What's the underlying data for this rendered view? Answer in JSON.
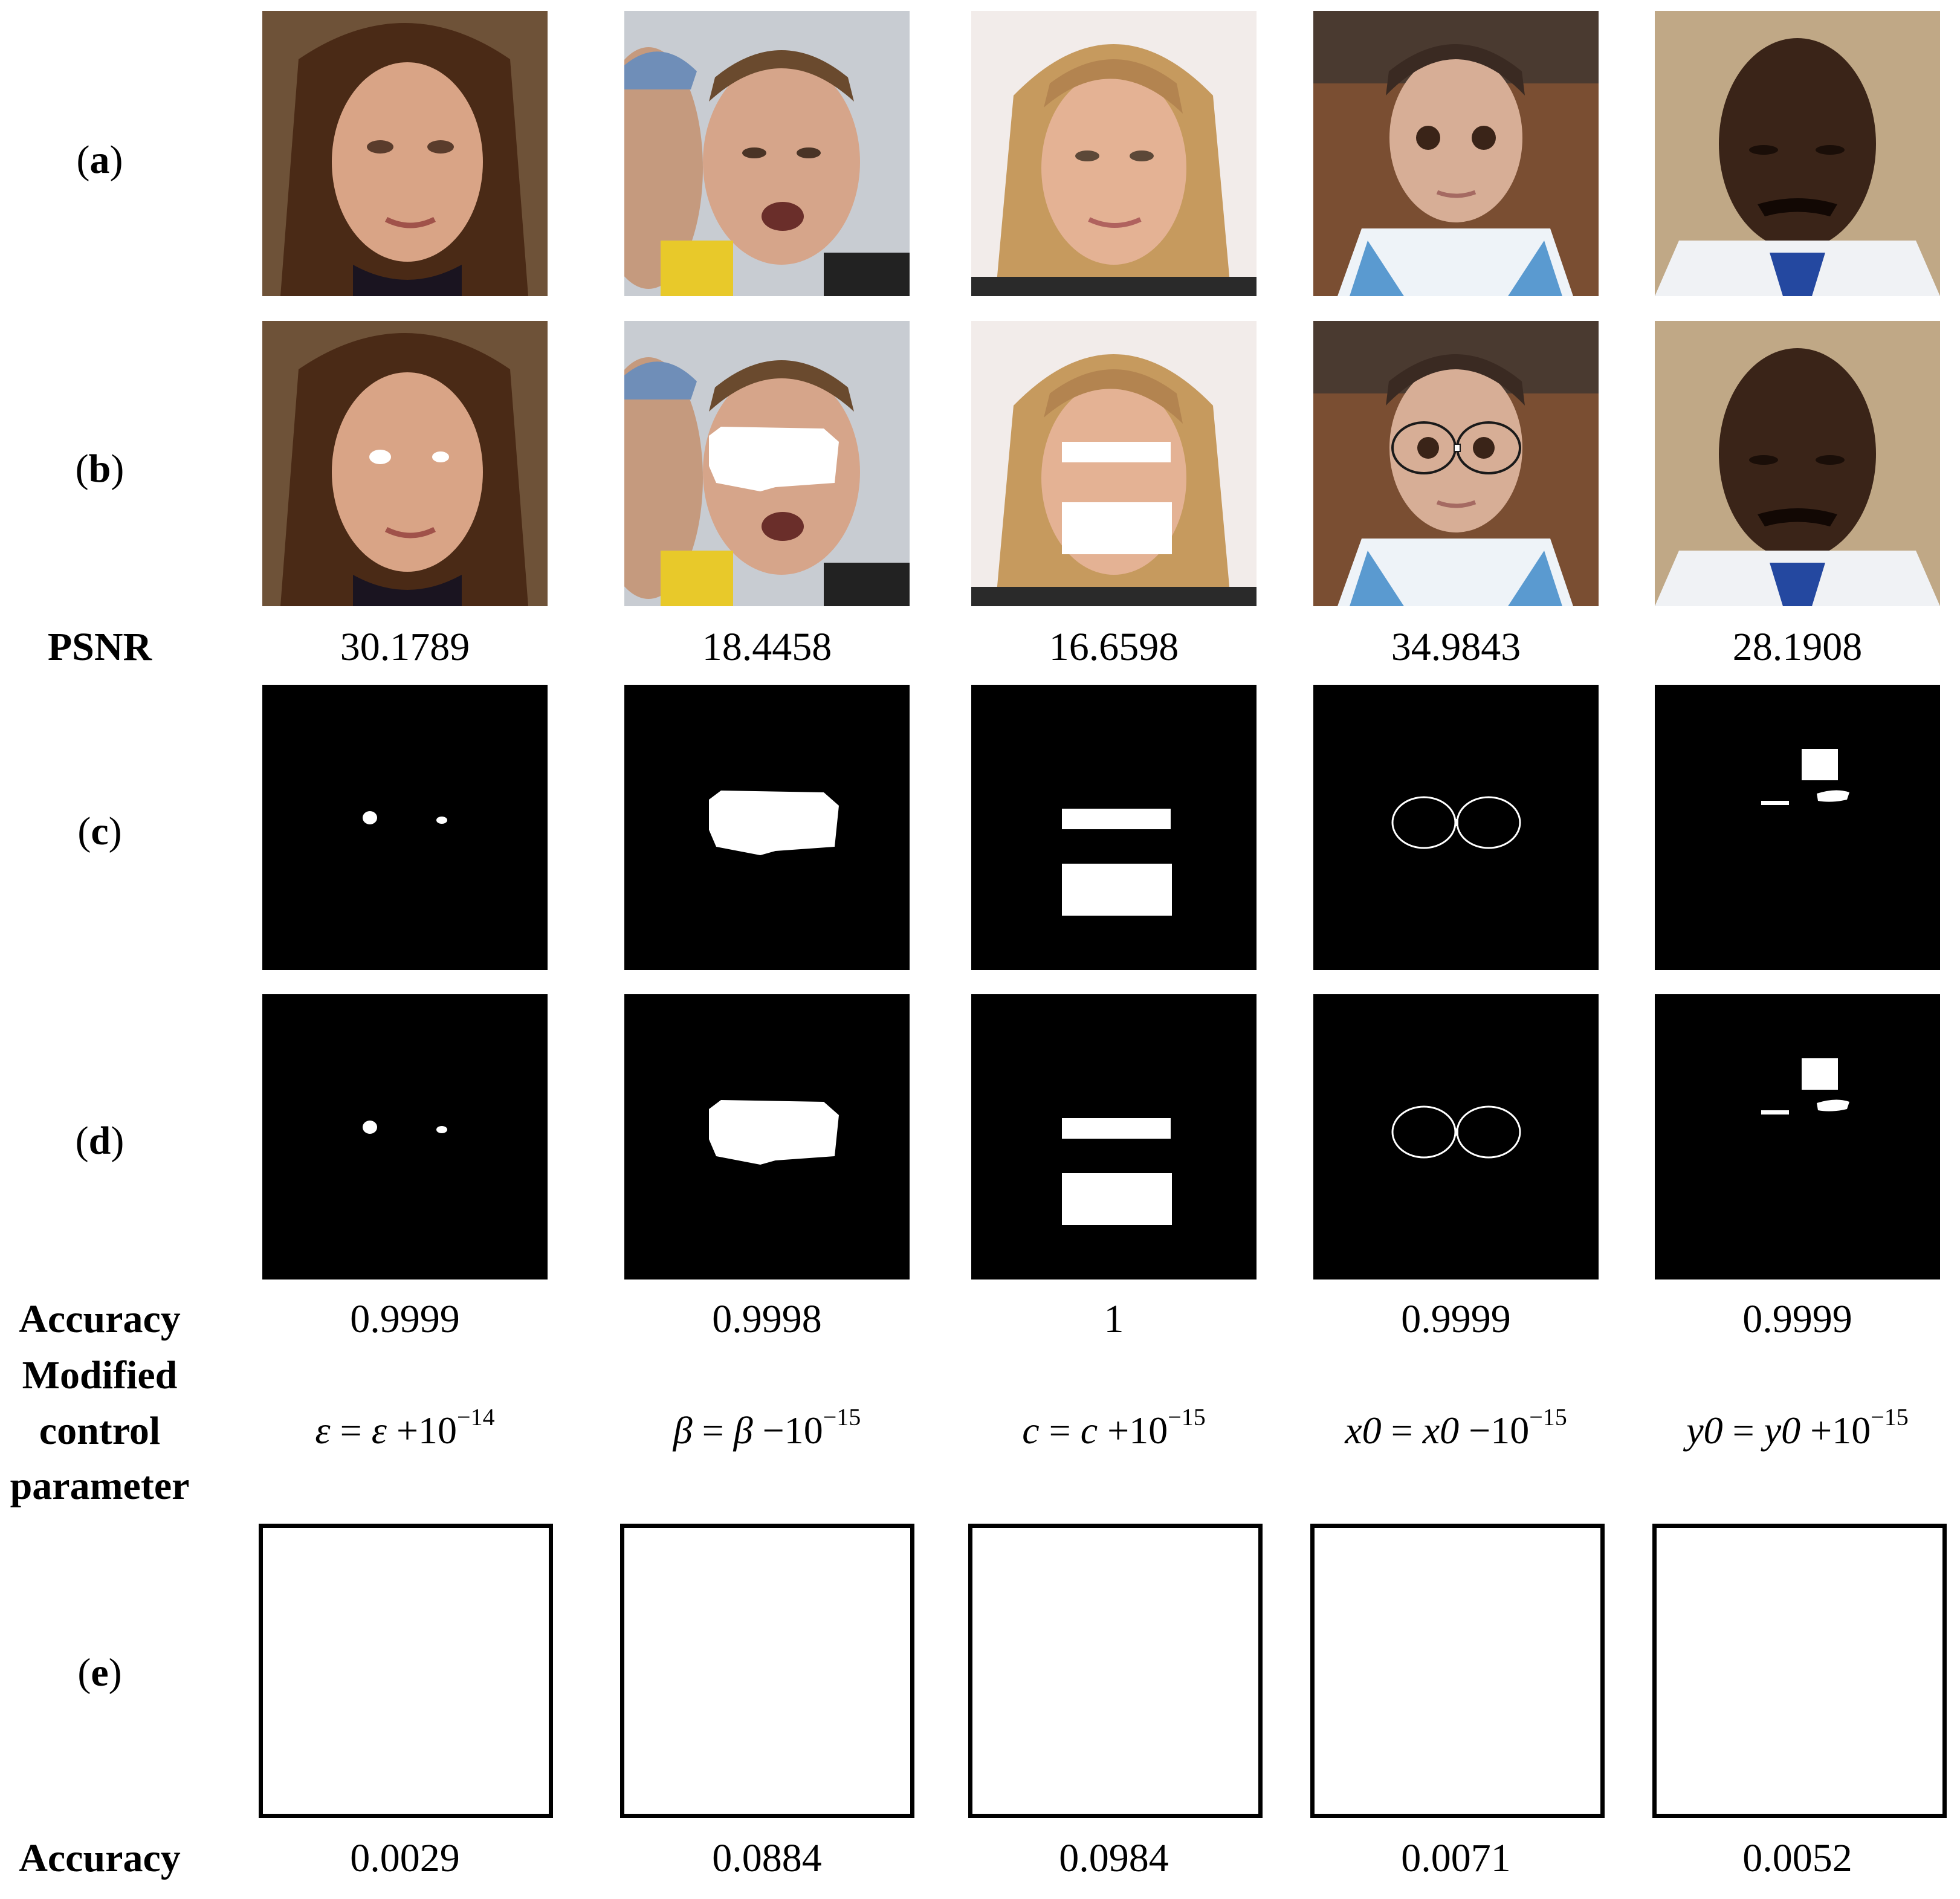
{
  "row_labels": {
    "a": "(a)",
    "b": "(b)",
    "psnr": "PSNR",
    "c": "(c)",
    "d": "(d)",
    "accuracy": "Accuracy",
    "modified_1": "Modified",
    "modified_2": "control",
    "modified_3": "parameter",
    "e": "(e)",
    "accuracy_e": "Accuracy"
  },
  "columns": [
    {
      "psnr": "30.1789",
      "accuracy": "0.9999",
      "param": {
        "lhs": "ε",
        "op": "=",
        "var": "ε",
        "sign": "+",
        "base": "10",
        "exp": "−14"
      },
      "accuracy_e": "0.0029"
    },
    {
      "psnr": "18.4458",
      "accuracy": "0.9998",
      "param": {
        "lhs": "β",
        "op": "=",
        "var": "β",
        "sign": "−",
        "base": "10",
        "exp": "−15"
      },
      "accuracy_e": "0.0884"
    },
    {
      "psnr": "16.6598",
      "accuracy": "1",
      "param": {
        "lhs": "c",
        "op": "=",
        "var": "c",
        "sign": "+",
        "base": "10",
        "exp": "−15"
      },
      "accuracy_e": "0.0984"
    },
    {
      "psnr": "34.9843",
      "accuracy": "0.9999",
      "param": {
        "lhs": "x0",
        "op": "=",
        "var": "x0",
        "sign": "−",
        "base": "10",
        "exp": "−15"
      },
      "accuracy_e": "0.0071"
    },
    {
      "psnr": "28.1908",
      "accuracy": "0.9999",
      "param": {
        "lhs": "y0",
        "op": "=",
        "var": "y0",
        "sign": "+",
        "base": "10",
        "exp": "−15"
      },
      "accuracy_e": "0.0052"
    }
  ],
  "colors": {
    "mask_background": "#000000",
    "mask_foreground": "#ffffff",
    "box_border": "#000000"
  }
}
